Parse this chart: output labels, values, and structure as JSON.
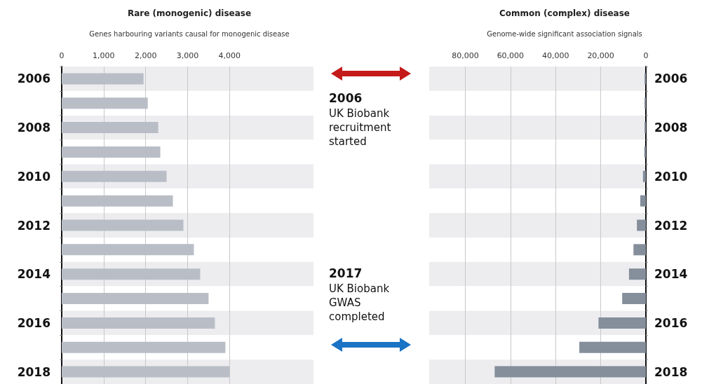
{
  "chart_data": [
    {
      "type": "bar",
      "orientation": "horizontal",
      "title": "Rare (monogenic) disease",
      "subtitle": "Genes harbouring variants causal for monogenic disease",
      "categories": [
        "2006",
        null,
        "2008",
        null,
        "2010",
        null,
        "2012",
        null,
        "2014",
        null,
        "2016",
        null,
        "2018"
      ],
      "values": [
        1950,
        2050,
        2300,
        2350,
        2500,
        2650,
        2900,
        3150,
        3300,
        3500,
        3650,
        3900,
        4000
      ],
      "color": "#b9bec6",
      "xlim": [
        0,
        6000
      ],
      "xticks": [
        0,
        {
          "value": 1000,
          "label": "1,000"
        },
        {
          "value": 2000,
          "label": "2,000"
        },
        {
          "value": 3000,
          "label": "3,000"
        },
        {
          "value": 4000,
          "label": "4,000"
        }
      ],
      "grid": "x",
      "annotations": [
        "2006",
        "UK Biobank recruitment started",
        "2017",
        "UK Biobank GWAS completed"
      ]
    },
    {
      "type": "bar",
      "orientation": "horizontal",
      "title": "Common (complex) disease",
      "subtitle": "Genome-wide significant association signals",
      "categories": [
        "2006",
        null,
        "2008",
        null,
        "2010",
        null,
        "2012",
        null,
        "2014",
        null,
        "2016",
        null,
        "2018"
      ],
      "values": [
        600,
        600,
        600,
        700,
        1300,
        2500,
        4000,
        5500,
        7500,
        10500,
        21000,
        29500,
        67000
      ],
      "color": "#858e9b",
      "xlim": [
        96000,
        0
      ],
      "xticks": [
        {
          "value": 80000,
          "label": "80,000"
        },
        {
          "value": 60000,
          "label": "60,000"
        },
        {
          "value": 40000,
          "label": "40,000"
        },
        {
          "value": 20000,
          "label": "20,000"
        },
        0
      ],
      "grid": "x"
    }
  ]
}
